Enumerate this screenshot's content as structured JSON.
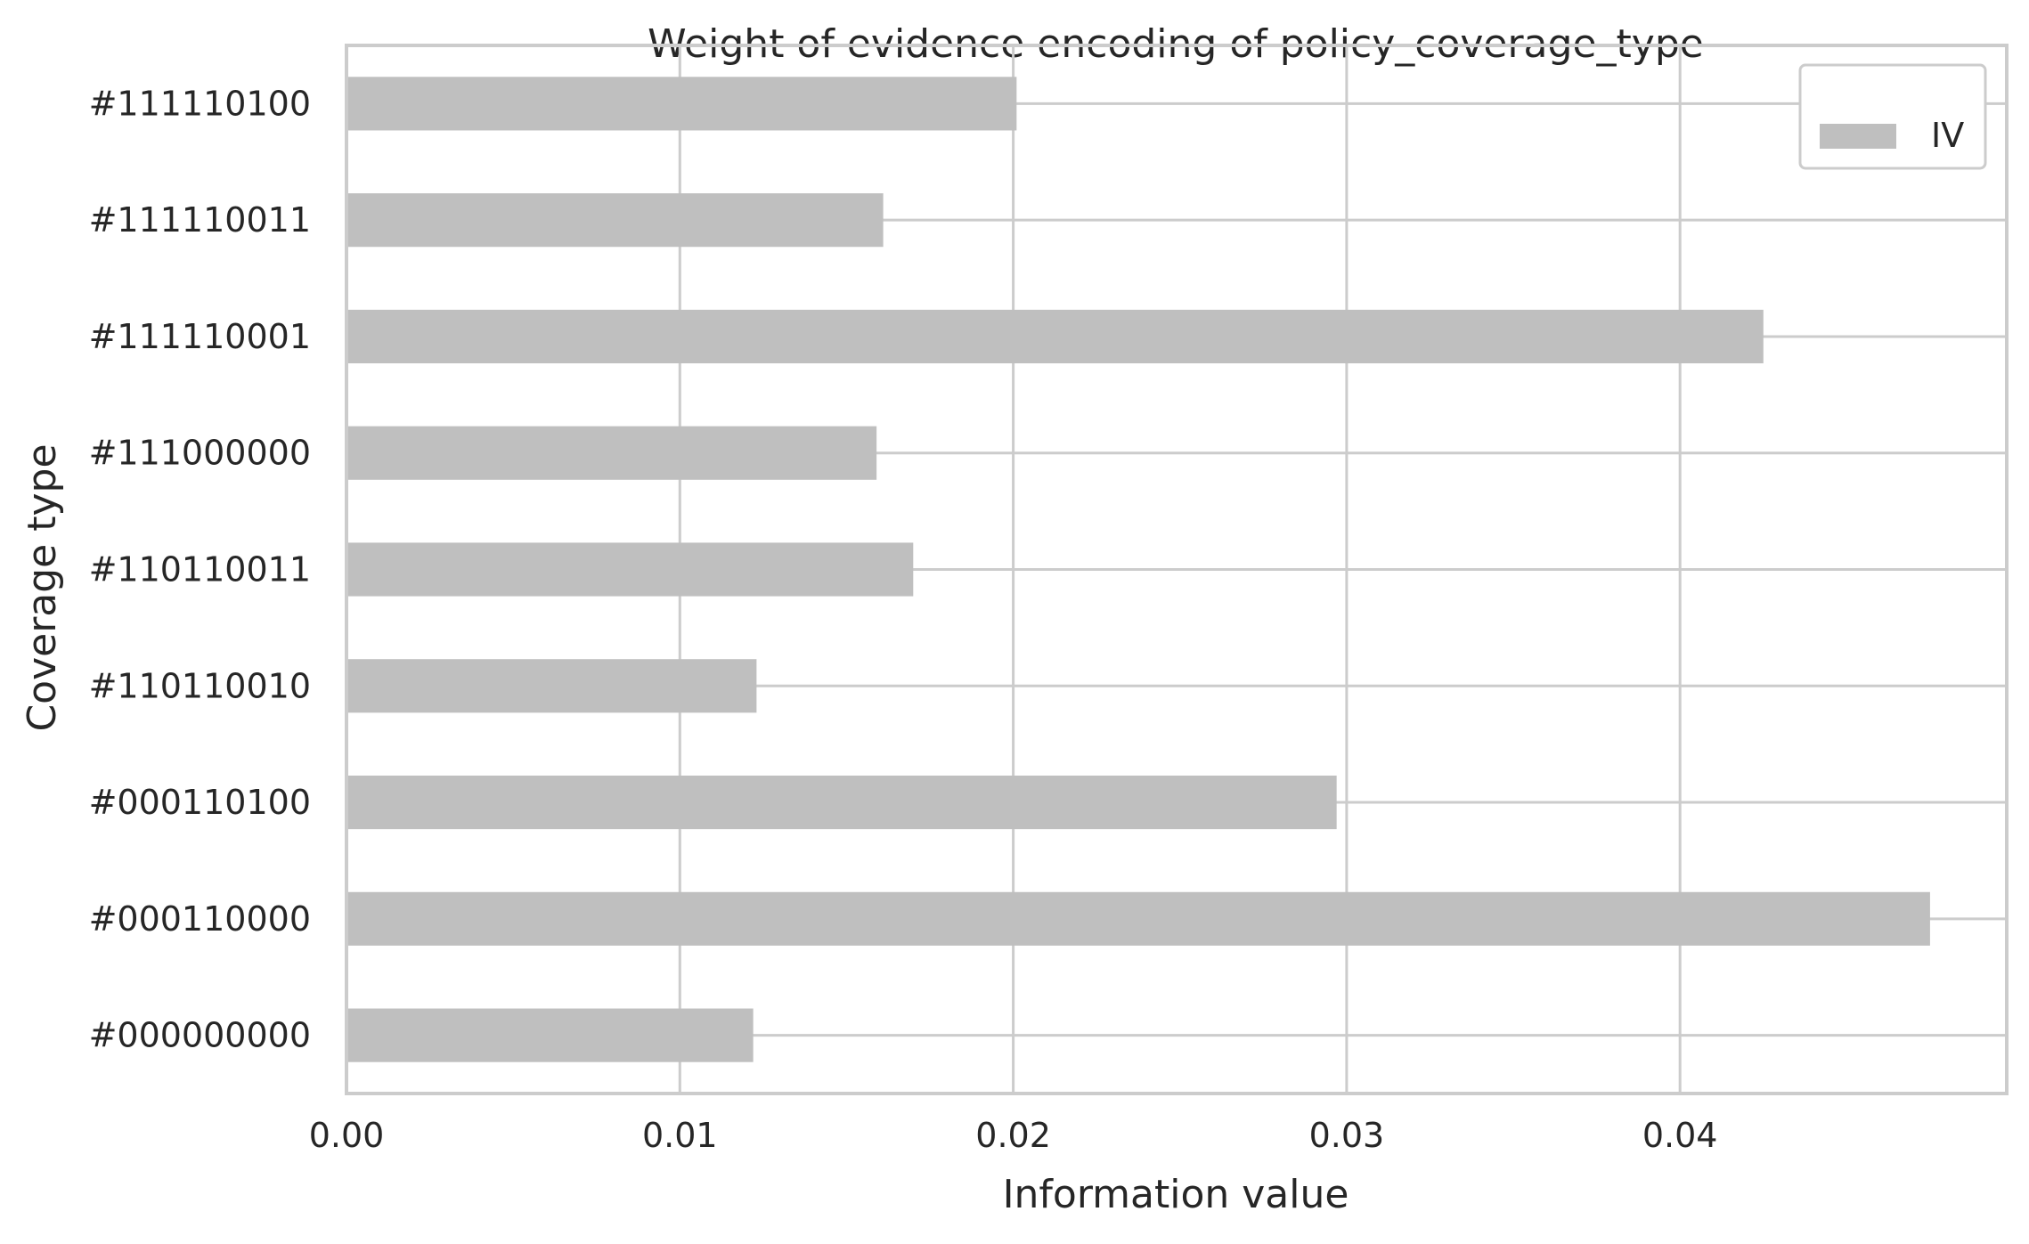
{
  "chart_data": {
    "type": "bar",
    "orientation": "horizontal",
    "title": "Weight of evidence encoding of policy_coverage_type",
    "xlabel": "Information value",
    "ylabel": "Coverage type",
    "categories": [
      "#111110100",
      "#111110011",
      "#111110001",
      "#111000000",
      "#110110011",
      "#110110010",
      "#000110100",
      "#000110000",
      "#000000000"
    ],
    "series": [
      {
        "name": "IV",
        "color": "#bfbfbf",
        "values": [
          0.0201,
          0.0161,
          0.0425,
          0.0159,
          0.017,
          0.0123,
          0.0297,
          0.0475,
          0.0122
        ]
      }
    ],
    "xlim": [
      0,
      0.0498
    ],
    "xticks": [
      0.0,
      0.01,
      0.02,
      0.03,
      0.04
    ],
    "xtick_labels": [
      "0.00",
      "0.01",
      "0.02",
      "0.03",
      "0.04"
    ],
    "grid": true,
    "legend": {
      "placement": "top-right",
      "entries": [
        "IV"
      ]
    }
  }
}
